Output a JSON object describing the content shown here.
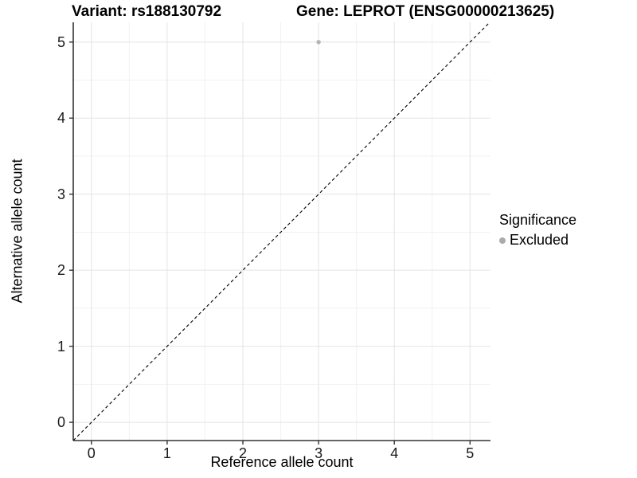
{
  "titles": {
    "left": "Variant: rs188130792",
    "right": "Gene: LEPROT (ENSG00000213625)"
  },
  "chart_data": {
    "type": "scatter",
    "xlabel": "Reference allele count",
    "ylabel": "Alternative allele count",
    "x_ticks": [
      0,
      1,
      2,
      3,
      4,
      5
    ],
    "y_ticks": [
      0,
      1,
      2,
      3,
      4,
      5
    ],
    "xlim": [
      -0.24,
      5.27
    ],
    "ylim": [
      -0.24,
      5.26
    ],
    "grid": {
      "major": true,
      "minor": true,
      "minor_step": 0.5
    },
    "series": [
      {
        "name": "Excluded",
        "marker": "circle",
        "color": "#b4b4b4",
        "points": [
          {
            "x": 3,
            "y": 5
          }
        ]
      }
    ],
    "reference_line": {
      "kind": "identity y=x",
      "slope": 1,
      "intercept": 0,
      "style": "dashed",
      "color": "#000000"
    }
  },
  "legend": {
    "title": "Significance",
    "position": "right",
    "items": [
      {
        "label": "Excluded",
        "color": "#ababab",
        "marker": "circle"
      }
    ]
  },
  "colors": {
    "background": "#ffffff",
    "grid_major": "#e4e4e4",
    "grid_minor": "#f1f1f1",
    "axis_line": "#333333",
    "tick_mark": "#333333",
    "point": "#b4b4b4",
    "text": "#000000"
  }
}
